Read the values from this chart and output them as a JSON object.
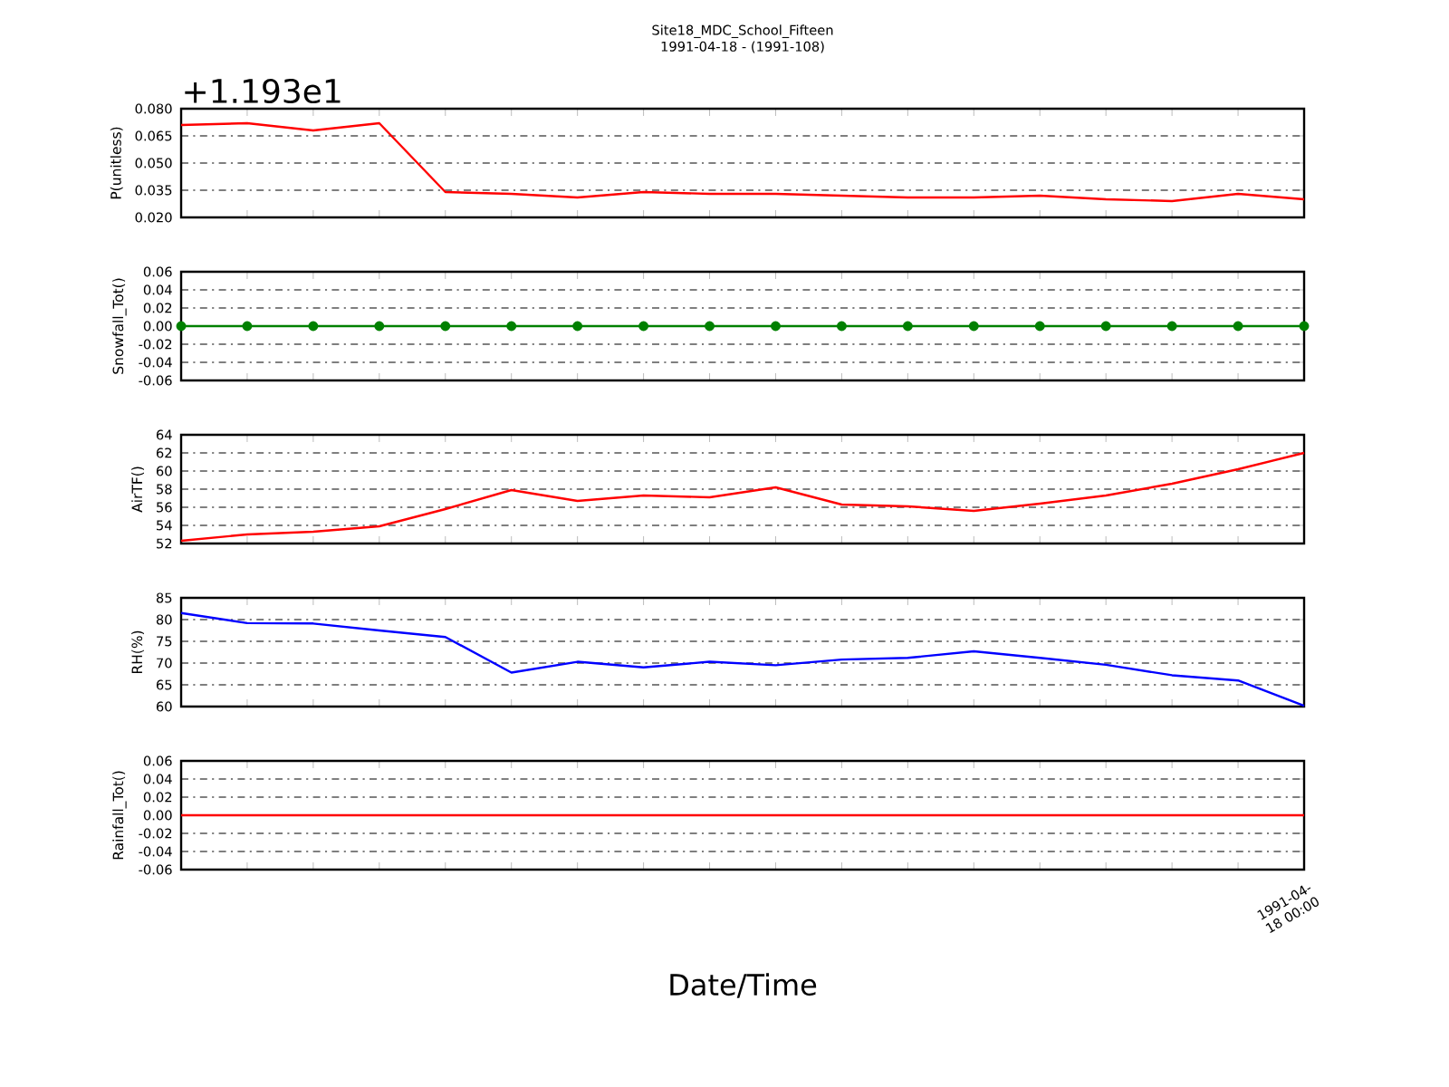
{
  "chart_data": [
    {
      "type": "line",
      "title": "Site18_MDC_School_Fifteen",
      "subtitle": "1991-04-18 - (1991-108)",
      "ylabel": "P(unitless)",
      "annotations": [
        "+1.193e1"
      ],
      "categories": [
        null,
        null,
        null,
        null,
        null,
        null,
        null,
        null,
        null,
        null,
        null,
        null,
        null,
        null,
        null,
        null,
        null,
        null
      ],
      "values": [
        0.071,
        0.072,
        0.068,
        0.072,
        0.034,
        0.033,
        0.031,
        0.034,
        0.033,
        0.033,
        0.032,
        0.031,
        0.031,
        0.032,
        0.03,
        0.029,
        0.033,
        0.03
      ],
      "color": "#ff0000",
      "ylim": [
        0.02,
        0.08
      ],
      "yticks": [
        {
          "value": 0.02,
          "label": "0.020"
        },
        {
          "value": 0.035,
          "label": "0.035"
        },
        {
          "value": 0.05,
          "label": "0.050"
        },
        {
          "value": 0.065,
          "label": "0.065"
        },
        {
          "value": 0.08,
          "label": "0.080"
        }
      ],
      "grid": "y"
    },
    {
      "type": "line",
      "ylabel": "Snowfall_Tot()",
      "categories": [
        null,
        null,
        null,
        null,
        null,
        null,
        null,
        null,
        null,
        null,
        null,
        null,
        null,
        null,
        null,
        null,
        null,
        null
      ],
      "values": [
        0,
        0,
        0,
        0,
        0,
        0,
        0,
        0,
        0,
        0,
        0,
        0,
        0,
        0,
        0,
        0,
        0,
        0
      ],
      "color": "#008000",
      "marker": "circle",
      "ylim": [
        -0.06,
        0.06
      ],
      "yticks": [
        {
          "value": -0.06,
          "label": "-0.06"
        },
        {
          "value": -0.04,
          "label": "-0.04"
        },
        {
          "value": -0.02,
          "label": "-0.02"
        },
        {
          "value": 0,
          "label": "0.00"
        },
        {
          "value": 0.02,
          "label": "0.02"
        },
        {
          "value": 0.04,
          "label": "0.04"
        },
        {
          "value": 0.06,
          "label": "0.06"
        }
      ],
      "grid": "y"
    },
    {
      "type": "line",
      "ylabel": "AirTF()",
      "categories": [
        null,
        null,
        null,
        null,
        null,
        null,
        null,
        null,
        null,
        null,
        null,
        null,
        null,
        null,
        null,
        null,
        null,
        null
      ],
      "values": [
        52.3,
        53.0,
        53.3,
        53.9,
        55.8,
        57.9,
        56.7,
        57.3,
        57.1,
        58.2,
        56.3,
        56.1,
        55.6,
        56.4,
        57.3,
        58.6,
        60.2,
        62.0
      ],
      "color": "#ff0000",
      "ylim": [
        52,
        64
      ],
      "yticks": [
        52,
        54,
        56,
        58,
        60,
        62,
        64
      ],
      "grid": "y"
    },
    {
      "type": "line",
      "ylabel": "RH(%)",
      "categories": [
        null,
        null,
        null,
        null,
        null,
        null,
        null,
        null,
        null,
        null,
        null,
        null,
        null,
        null,
        null,
        null,
        null,
        null
      ],
      "values": [
        81.5,
        79.2,
        79.1,
        77.5,
        76.0,
        67.8,
        70.3,
        69.0,
        70.3,
        69.5,
        70.8,
        71.2,
        72.7,
        71.2,
        69.6,
        67.2,
        66.0,
        60.2
      ],
      "color": "#0000ff",
      "ylim": [
        60,
        85
      ],
      "yticks": [
        60,
        65,
        70,
        75,
        80,
        85
      ],
      "grid": "y"
    },
    {
      "type": "line",
      "ylabel": "Rainfall_Tot()",
      "xlabel": "Date/Time",
      "annotations": [
        "1991-04-18 00:00"
      ],
      "categories": [
        null,
        null,
        null,
        null,
        null,
        null,
        null,
        null,
        null,
        null,
        null,
        null,
        null,
        null,
        null,
        null,
        null,
        null
      ],
      "values": [
        0,
        0,
        0,
        0,
        0,
        0,
        0,
        0,
        0,
        0,
        0,
        0,
        0,
        0,
        0,
        0,
        0,
        0
      ],
      "color": "#ff0000",
      "ylim": [
        -0.06,
        0.06
      ],
      "yticks": [
        {
          "value": -0.06,
          "label": "-0.06"
        },
        {
          "value": -0.04,
          "label": "-0.04"
        },
        {
          "value": -0.02,
          "label": "-0.02"
        },
        {
          "value": 0,
          "label": "0.00"
        },
        {
          "value": 0.02,
          "label": "0.02"
        },
        {
          "value": 0.04,
          "label": "0.04"
        },
        {
          "value": 0.06,
          "label": "0.06"
        }
      ],
      "grid": "y"
    }
  ]
}
